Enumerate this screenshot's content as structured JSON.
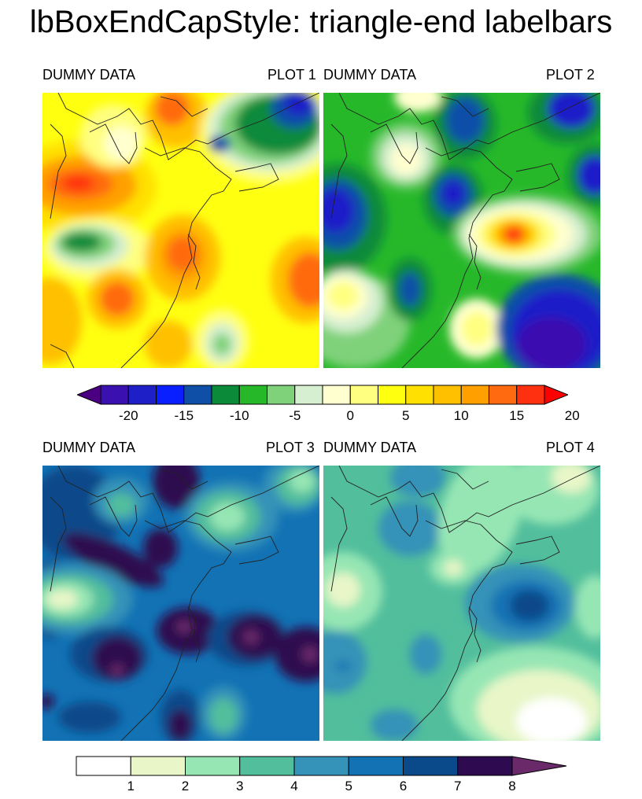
{
  "title": "lbBoxEndCapStyle: triangle-end labelbars",
  "panels": [
    {
      "left_label": "DUMMY DATA",
      "right_label": "PLOT 1"
    },
    {
      "left_label": "DUMMY DATA",
      "right_label": "PLOT 2"
    },
    {
      "left_label": "DUMMY DATA",
      "right_label": "PLOT 3"
    },
    {
      "left_label": "DUMMY DATA",
      "right_label": "PLOT 4"
    }
  ],
  "colorbar_top": {
    "end_cap_style": "triangle both ends",
    "colors": [
      "#4b0082",
      "#3a10b0",
      "#1f1fc8",
      "#0a1fff",
      "#0f4fa8",
      "#0b8a3a",
      "#27b82a",
      "#7fd17a",
      "#d6efd0",
      "#ffffd0",
      "#ffff80",
      "#ffff10",
      "#ffe000",
      "#ffc000",
      "#ffa000",
      "#ff6a10",
      "#ff3010",
      "#ff0000"
    ],
    "tick_labels": [
      "-20",
      "-15",
      "-10",
      "-5",
      "0",
      "5",
      "10",
      "15",
      "20"
    ]
  },
  "colorbar_bottom": {
    "end_cap_style": "triangle right end",
    "colors": [
      "#ffffff",
      "#e8f6c8",
      "#96e6b4",
      "#52be9c",
      "#3592b8",
      "#1272b4",
      "#0a4a8a",
      "#2e0a50",
      "#6a2a6a"
    ],
    "tick_labels": [
      "1",
      "2",
      "3",
      "4",
      "5",
      "6",
      "7",
      "8"
    ]
  }
}
